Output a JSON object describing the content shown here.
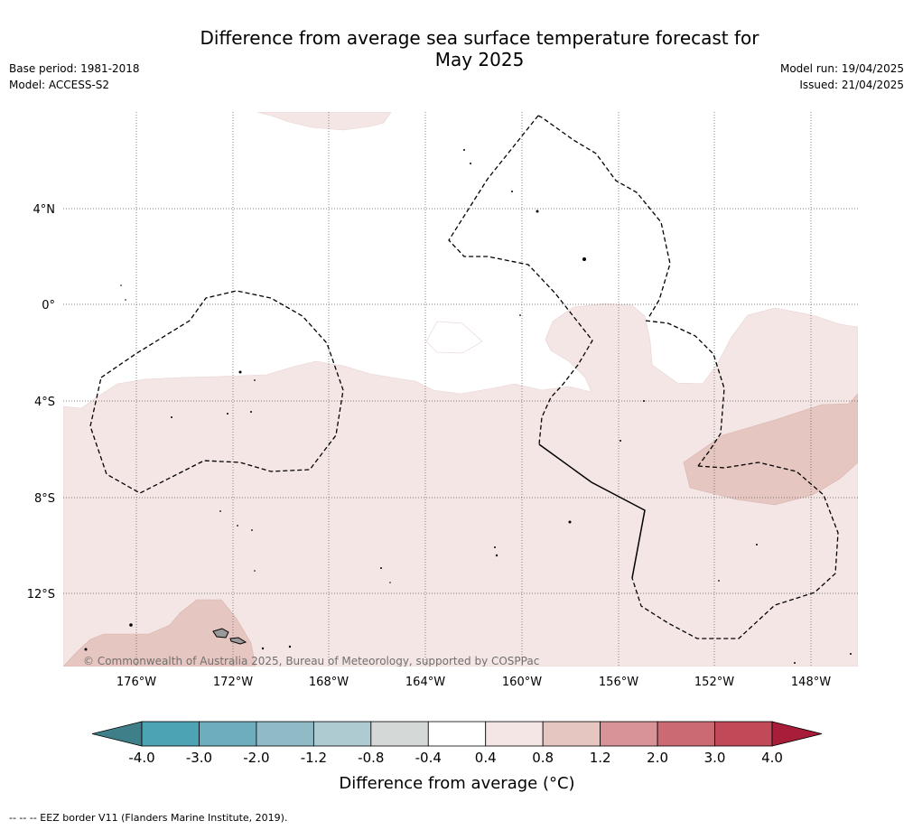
{
  "header": {
    "title_line1": "Difference from average sea surface temperature forecast for",
    "title_line2": "May 2025",
    "base_period": "Base period: 1981-2018",
    "model": "Model: ACCESS-S2",
    "model_run": "Model run: 19/04/2025",
    "issued": "Issued: 21/04/2025"
  },
  "map": {
    "copyright": "© Commonwealth of Australia 2025, Bureau of Meteorology, supported by COSPPac",
    "lat_labels": [
      "4°N",
      "0°",
      "4°S",
      "8°S",
      "12°S"
    ],
    "lon_labels": [
      "176°W",
      "172°W",
      "168°W",
      "164°W",
      "160°W",
      "156°W",
      "152°W",
      "148°W"
    ]
  },
  "colorbar": {
    "tick_labels": [
      "-4.0",
      "-3.0",
      "-2.0",
      "-1.2",
      "-0.8",
      "-0.4",
      "0.4",
      "0.8",
      "1.2",
      "2.0",
      "3.0",
      "4.0"
    ],
    "colors": [
      "#3f7f89",
      "#4ba3b4",
      "#6eadbd",
      "#8fbac6",
      "#afcbd2",
      "#d4d8d7",
      "#ffffff",
      "#f4e6e4",
      "#e6c6c1",
      "#d89398",
      "#cc6a74",
      "#c04a58",
      "#a81d3a"
    ],
    "label": "Difference from average (°C)"
  },
  "footer": {
    "legend": "--  --  -- EEZ border V11 (Flanders Marine Institute, 2019)."
  }
}
